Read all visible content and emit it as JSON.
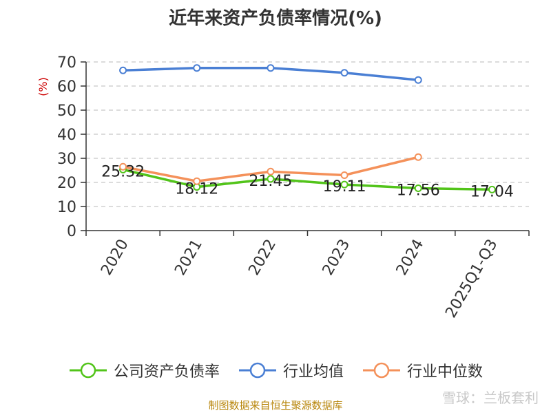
{
  "title": "近年来资产负债率情况(%)",
  "source": "制图数据来自恒生聚源数据库",
  "watermark": "雪球：兰板套利",
  "chart_data": {
    "type": "line",
    "categories": [
      "2020",
      "2021",
      "2022",
      "2023",
      "2024",
      "2025Q1-Q3"
    ],
    "ylabel": "(%)",
    "ylim": [
      0,
      70
    ],
    "yticks": [
      0,
      10,
      20,
      30,
      40,
      50,
      60,
      70
    ],
    "grid": true,
    "legend_position": "bottom",
    "series": [
      {
        "name": "公司资产负债率",
        "color": "#52c41a",
        "values": [
          25.32,
          18.12,
          21.45,
          19.11,
          17.56,
          17.04
        ],
        "show_labels": true
      },
      {
        "name": "行业均值",
        "color": "#4a7fd4",
        "values": [
          66.5,
          67.5,
          67.5,
          65.5,
          62.5,
          null
        ],
        "show_labels": false
      },
      {
        "name": "行业中位数",
        "color": "#f4915a",
        "values": [
          26.5,
          20.5,
          24.5,
          23.0,
          30.5,
          null
        ],
        "show_labels": false
      }
    ]
  }
}
